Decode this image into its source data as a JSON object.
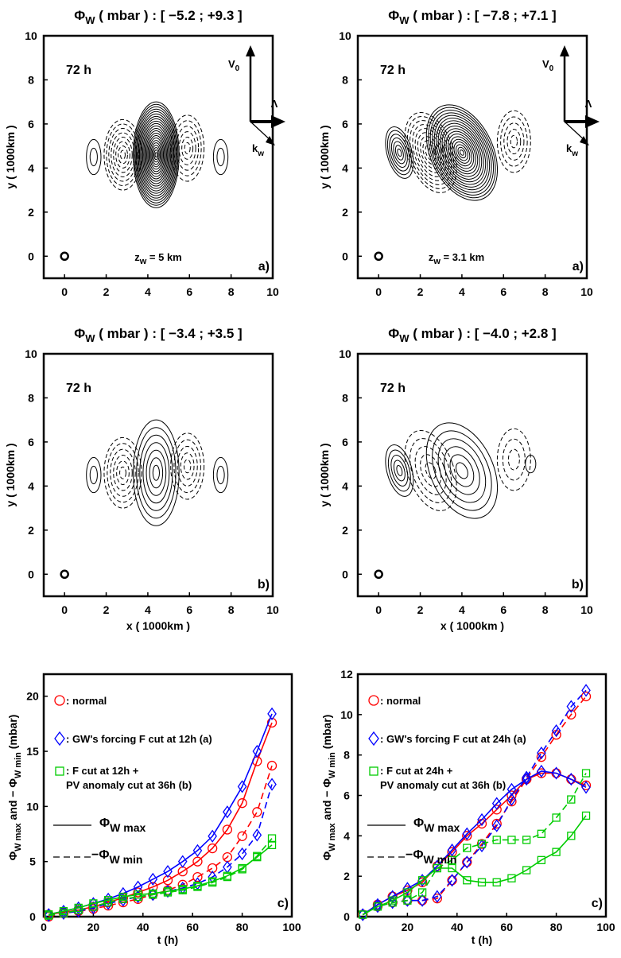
{
  "panels": [
    {
      "id": "top-left",
      "title_sym": "Φ",
      "title_sub": "W",
      "title_rest": " ( mbar ) : [ −5.2 ; +9.3 ]",
      "time": "72 h",
      "zlabel": "z",
      "zsub": "w",
      "zvalue": " = 5 km",
      "tag": "a)",
      "xlabel": "",
      "ylabel": "y  ( 1000km )",
      "xticks": [
        "0",
        "2",
        "4",
        "6",
        "8",
        "10"
      ],
      "yticks": [
        "0",
        "2",
        "4",
        "6",
        "8",
        "10"
      ],
      "arrows": {
        "v0": "V",
        "v0sub": "0",
        "lambda": "Λ",
        "kw": "k",
        "kwsub": "w"
      }
    },
    {
      "id": "top-right",
      "title_sym": "Φ",
      "title_sub": "W",
      "title_rest": " ( mbar ) : [ −7.8 ; +7.1 ]",
      "time": "72 h",
      "zlabel": "z",
      "zsub": "w",
      "zvalue": " = 3.1 km",
      "tag": "a)",
      "xlabel": "",
      "ylabel": "y  ( 1000km )",
      "xticks": [
        "0",
        "2",
        "4",
        "6",
        "8",
        "10"
      ],
      "yticks": [
        "0",
        "2",
        "4",
        "6",
        "8",
        "10"
      ],
      "arrows": {
        "v0": "V",
        "v0sub": "0",
        "lambda": "Λ",
        "kw": "k",
        "kwsub": "w"
      }
    },
    {
      "id": "mid-left",
      "title_sym": "Φ",
      "title_sub": "W",
      "title_rest": " ( mbar ) : [ −3.4 ; +3.5 ]",
      "time": "72 h",
      "tag": "b)",
      "xlabel": "x  ( 1000km )",
      "ylabel": "y  ( 1000km )",
      "xticks": [
        "0",
        "2",
        "4",
        "6",
        "8",
        "10"
      ],
      "yticks": [
        "0",
        "2",
        "4",
        "6",
        "8",
        "10"
      ]
    },
    {
      "id": "mid-right",
      "title_sym": "Φ",
      "title_sub": "W",
      "title_rest": " ( mbar ) : [ −4.0 ; +2.8 ]",
      "time": "72 h",
      "tag": "b)",
      "xlabel": "x  ( 1000km )",
      "ylabel": "y  ( 1000km )",
      "xticks": [
        "0",
        "2",
        "4",
        "6",
        "8",
        "10"
      ],
      "yticks": [
        "0",
        "2",
        "4",
        "6",
        "8",
        "10"
      ]
    }
  ],
  "legend": {
    "normal": ": normal",
    "gw_left": ": GW's forcing F cut at 12h (a)",
    "gw_right": ": GW's forcing F cut at 24h (a)",
    "f_left_1": ": F cut at 12h +",
    "f_right_1": ": F cut at 24h +",
    "f_2_left": "PV anomaly cut at 36h (b)",
    "f_2_right": "PV anomaly cut at 36h (b)",
    "max_sym": "Φ",
    "max_sub": "W max",
    "min_sym": "−Φ",
    "min_sub": "W min"
  },
  "bottom": {
    "xlabel": "t (h)",
    "ylabel_a": "Φ",
    "ylabel_b": "W max",
    "ylabel_c": " and − Φ",
    "ylabel_d": "W min",
    "ylabel_e": " (mbar)",
    "tag": "c)"
  },
  "colors": {
    "normal": "#ff0000",
    "gw": "#0000ff",
    "pv": "#00cc00"
  },
  "chart_data": [
    {
      "type": "line",
      "id": "bottom-left",
      "xlabel": "t (h)",
      "xlim": [
        0,
        100
      ],
      "ylim": [
        0,
        22
      ],
      "xticks": [
        0,
        20,
        40,
        60,
        80,
        100
      ],
      "yticks": [
        0,
        5,
        10,
        15,
        20
      ],
      "series": [
        {
          "name": "normal",
          "kind": "max",
          "marker": "circle",
          "color": "#ff0000",
          "dash": false,
          "x": [
            2,
            8,
            14,
            20,
            26,
            32,
            38,
            44,
            50,
            56,
            62,
            68,
            74,
            80,
            86,
            92
          ],
          "y": [
            0.2,
            0.4,
            0.6,
            0.9,
            1.3,
            1.7,
            2.2,
            2.7,
            3.3,
            4.1,
            5.0,
            6.2,
            7.9,
            10.3,
            14.1,
            17.6
          ]
        },
        {
          "name": "normal",
          "kind": "min",
          "marker": "circle",
          "color": "#ff0000",
          "dash": true,
          "x": [
            2,
            8,
            14,
            20,
            26,
            32,
            38,
            44,
            50,
            56,
            62,
            68,
            74,
            80,
            86,
            92
          ],
          "y": [
            0.0,
            0.3,
            0.5,
            0.7,
            1.0,
            1.3,
            1.6,
            2.0,
            2.4,
            2.9,
            3.6,
            4.4,
            5.4,
            7.3,
            9.5,
            13.7
          ]
        },
        {
          "name": "GW's forcing F cut at 12h (a)",
          "kind": "max",
          "marker": "diamond",
          "color": "#0000ff",
          "dash": false,
          "x": [
            2,
            8,
            14,
            20,
            26,
            32,
            38,
            44,
            50,
            56,
            62,
            68,
            74,
            80,
            86,
            92
          ],
          "y": [
            0.2,
            0.5,
            0.8,
            1.2,
            1.6,
            2.1,
            2.7,
            3.4,
            4.1,
            5.0,
            6.0,
            7.3,
            9.5,
            11.8,
            15.0,
            18.4
          ]
        },
        {
          "name": "GW's forcing F cut at 12h (a)",
          "kind": "min",
          "marker": "diamond",
          "color": "#0000ff",
          "dash": true,
          "x": [
            2,
            8,
            14,
            20,
            26,
            32,
            38,
            44,
            50,
            56,
            62,
            68,
            74,
            80,
            86,
            92
          ],
          "y": [
            0.1,
            0.3,
            0.5,
            0.8,
            1.2,
            1.5,
            1.8,
            2.0,
            2.3,
            2.6,
            3.0,
            3.6,
            4.5,
            5.7,
            7.4,
            12.0
          ]
        },
        {
          "name": "F cut at 12h + PV anomaly cut at 36h (b)",
          "kind": "max",
          "marker": "square",
          "color": "#00cc00",
          "dash": false,
          "x": [
            2,
            8,
            14,
            20,
            26,
            32,
            38,
            44,
            50,
            56,
            62,
            68,
            74,
            80,
            86,
            92
          ],
          "y": [
            0.2,
            0.5,
            0.8,
            1.2,
            1.5,
            1.8,
            2.0,
            2.1,
            2.3,
            2.5,
            2.8,
            3.2,
            3.7,
            4.4,
            5.4,
            6.5
          ]
        },
        {
          "name": "F cut at 12h + PV anomaly cut at 36h (b)",
          "kind": "min",
          "marker": "square",
          "color": "#00cc00",
          "dash": true,
          "x": [
            2,
            8,
            14,
            20,
            26,
            32,
            38,
            44,
            50,
            56,
            62,
            68,
            74,
            80,
            86,
            92
          ],
          "y": [
            0.1,
            0.3,
            0.6,
            0.9,
            1.3,
            1.6,
            1.8,
            2.0,
            2.2,
            2.4,
            2.7,
            3.1,
            3.6,
            4.3,
            5.5,
            7.1
          ]
        }
      ]
    },
    {
      "type": "line",
      "id": "bottom-right",
      "xlabel": "t (h)",
      "xlim": [
        0,
        100
      ],
      "ylim": [
        0,
        12
      ],
      "xticks": [
        0,
        20,
        40,
        60,
        80,
        100
      ],
      "yticks": [
        0,
        2,
        4,
        6,
        8,
        10,
        12
      ],
      "series": [
        {
          "name": "normal",
          "kind": "max",
          "marker": "circle",
          "color": "#ff0000",
          "dash": false,
          "x": [
            2,
            8,
            14,
            20,
            26,
            32,
            38,
            44,
            50,
            56,
            62,
            68,
            74,
            80,
            86,
            92
          ],
          "y": [
            0.1,
            0.6,
            1.0,
            1.3,
            1.7,
            2.5,
            3.2,
            4.0,
            4.6,
            5.3,
            6.0,
            6.8,
            7.1,
            7.1,
            6.8,
            6.5
          ]
        },
        {
          "name": "normal",
          "kind": "min",
          "marker": "circle",
          "color": "#ff0000",
          "dash": true,
          "x": [
            2,
            8,
            14,
            20,
            26,
            32,
            38,
            44,
            50,
            56,
            62,
            68,
            74,
            80,
            86,
            92
          ],
          "y": [
            0.1,
            0.5,
            0.7,
            0.8,
            0.8,
            0.9,
            1.8,
            2.7,
            3.6,
            4.6,
            5.7,
            6.8,
            7.9,
            9.0,
            10.0,
            10.9
          ]
        },
        {
          "name": "GW's forcing F cut at 24h (a)",
          "kind": "max",
          "marker": "diamond",
          "color": "#0000ff",
          "dash": false,
          "x": [
            2,
            8,
            14,
            20,
            26,
            32,
            38,
            44,
            50,
            56,
            62,
            68,
            74,
            80,
            86,
            92
          ],
          "y": [
            0.1,
            0.6,
            1.0,
            1.4,
            1.8,
            2.5,
            3.3,
            4.1,
            4.8,
            5.6,
            6.3,
            6.8,
            7.2,
            7.1,
            6.8,
            6.4
          ]
        },
        {
          "name": "GW's forcing F cut at 24h (a)",
          "kind": "min",
          "marker": "diamond",
          "color": "#0000ff",
          "dash": true,
          "x": [
            2,
            8,
            14,
            20,
            26,
            32,
            38,
            44,
            50,
            56,
            62,
            68,
            74,
            80,
            86,
            92
          ],
          "y": [
            0.1,
            0.5,
            0.7,
            0.8,
            0.8,
            1.0,
            1.8,
            2.7,
            3.5,
            4.5,
            5.8,
            6.9,
            8.1,
            9.2,
            10.4,
            11.2
          ]
        },
        {
          "name": "F cut at 24h + PV anomaly cut at 36h (b)",
          "kind": "max",
          "marker": "square",
          "color": "#00cc00",
          "dash": false,
          "x": [
            2,
            8,
            14,
            20,
            26,
            32,
            38,
            44,
            50,
            56,
            62,
            68,
            74,
            80,
            86,
            92
          ],
          "y": [
            0.1,
            0.5,
            0.8,
            1.2,
            1.8,
            2.4,
            2.4,
            1.8,
            1.7,
            1.7,
            1.9,
            2.3,
            2.8,
            3.2,
            4.0,
            5.0
          ]
        },
        {
          "name": "F cut at 24h + PV anomaly cut at 36h (b)",
          "kind": "min",
          "marker": "square",
          "color": "#00cc00",
          "dash": true,
          "x": [
            2,
            8,
            14,
            20,
            26,
            32,
            38,
            44,
            50,
            56,
            62,
            68,
            74,
            80,
            86,
            92
          ],
          "y": [
            0.1,
            0.5,
            0.7,
            0.8,
            1.2,
            2.4,
            2.8,
            3.4,
            3.6,
            3.8,
            3.8,
            3.8,
            4.1,
            4.9,
            5.8,
            7.1
          ]
        }
      ]
    }
  ]
}
